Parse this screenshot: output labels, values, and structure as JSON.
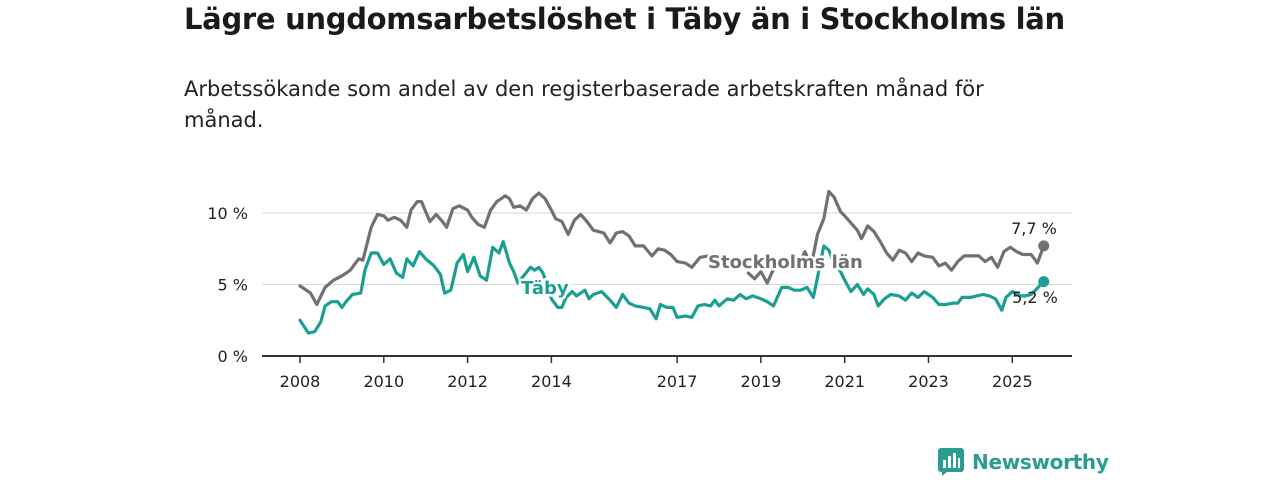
{
  "title": "Lägre ungdomsarbetslöshet i Täby än i Stockholms län",
  "subtitle": "Arbetssökande som andel av den registerbaserade arbetskraften månad för månad.",
  "brand": {
    "name": "Newsworthy",
    "icon": "bar-chart-logo-icon"
  },
  "colors": {
    "stockholm": "#717171",
    "taby": "#1a9f92",
    "grid": "#d9d9d9",
    "axis": "#333333"
  },
  "chart_data": {
    "type": "line",
    "x_ticks": [
      "2008",
      "2010",
      "2012",
      "2014",
      "2017",
      "2019",
      "2021",
      "2023",
      "2025"
    ],
    "y_ticks": [
      "0 %",
      "5 %",
      "10 %"
    ],
    "ylim": [
      0,
      12
    ],
    "series": [
      {
        "name": "Stockholms län",
        "end_label": "7,7 %",
        "points": [
          [
            2008.0,
            4.9
          ],
          [
            2008.25,
            4.4
          ],
          [
            2008.4,
            3.6
          ],
          [
            2008.6,
            4.8
          ],
          [
            2008.8,
            5.3
          ],
          [
            2009.0,
            5.6
          ],
          [
            2009.2,
            6.0
          ],
          [
            2009.4,
            6.8
          ],
          [
            2009.5,
            6.7
          ],
          [
            2009.7,
            9.0
          ],
          [
            2009.85,
            9.9
          ],
          [
            2010.0,
            9.8
          ],
          [
            2010.1,
            9.5
          ],
          [
            2010.25,
            9.7
          ],
          [
            2010.4,
            9.5
          ],
          [
            2010.55,
            9.0
          ],
          [
            2010.65,
            10.2
          ],
          [
            2010.8,
            10.8
          ],
          [
            2010.9,
            10.8
          ],
          [
            2011.0,
            10.1
          ],
          [
            2011.1,
            9.4
          ],
          [
            2011.25,
            9.9
          ],
          [
            2011.4,
            9.4
          ],
          [
            2011.5,
            9.0
          ],
          [
            2011.65,
            10.3
          ],
          [
            2011.8,
            10.5
          ],
          [
            2012.0,
            10.2
          ],
          [
            2012.1,
            9.7
          ],
          [
            2012.25,
            9.2
          ],
          [
            2012.4,
            9.0
          ],
          [
            2012.55,
            10.2
          ],
          [
            2012.7,
            10.8
          ],
          [
            2012.9,
            11.2
          ],
          [
            2013.0,
            11.0
          ],
          [
            2013.1,
            10.4
          ],
          [
            2013.25,
            10.5
          ],
          [
            2013.4,
            10.2
          ],
          [
            2013.55,
            11.0
          ],
          [
            2013.7,
            11.4
          ],
          [
            2013.85,
            11.0
          ],
          [
            2014.0,
            10.2
          ],
          [
            2014.1,
            9.6
          ],
          [
            2014.25,
            9.4
          ],
          [
            2014.4,
            8.5
          ],
          [
            2014.55,
            9.5
          ],
          [
            2014.7,
            9.9
          ],
          [
            2014.85,
            9.4
          ],
          [
            2015.0,
            8.8
          ],
          [
            2015.25,
            8.6
          ],
          [
            2015.4,
            7.9
          ],
          [
            2015.55,
            8.6
          ],
          [
            2015.7,
            8.7
          ],
          [
            2015.85,
            8.4
          ],
          [
            2016.0,
            7.7
          ],
          [
            2016.2,
            7.7
          ],
          [
            2016.4,
            7.0
          ],
          [
            2016.55,
            7.5
          ],
          [
            2016.7,
            7.4
          ],
          [
            2016.85,
            7.1
          ],
          [
            2017.0,
            6.6
          ],
          [
            2017.2,
            6.5
          ],
          [
            2017.35,
            6.2
          ],
          [
            2017.55,
            6.9
          ],
          [
            2017.75,
            7.0
          ],
          [
            2018.7,
            5.8
          ],
          [
            2018.85,
            5.4
          ],
          [
            2019.0,
            5.9
          ],
          [
            2019.15,
            5.1
          ],
          [
            2019.35,
            6.4
          ],
          [
            2019.6,
            6.6
          ],
          [
            2019.8,
            6.8
          ],
          [
            2019.95,
            6.7
          ],
          [
            2020.05,
            7.3
          ],
          [
            2020.2,
            6.3
          ],
          [
            2020.35,
            8.5
          ],
          [
            2020.5,
            9.6
          ],
          [
            2020.62,
            11.5
          ],
          [
            2020.75,
            11.1
          ],
          [
            2020.9,
            10.1
          ],
          [
            2021.0,
            9.8
          ],
          [
            2021.15,
            9.3
          ],
          [
            2021.3,
            8.8
          ],
          [
            2021.4,
            8.2
          ],
          [
            2021.55,
            9.1
          ],
          [
            2021.7,
            8.7
          ],
          [
            2021.85,
            8.0
          ],
          [
            2022.0,
            7.2
          ],
          [
            2022.15,
            6.7
          ],
          [
            2022.3,
            7.4
          ],
          [
            2022.45,
            7.2
          ],
          [
            2022.6,
            6.6
          ],
          [
            2022.75,
            7.2
          ],
          [
            2022.9,
            7.0
          ],
          [
            2023.1,
            6.9
          ],
          [
            2023.25,
            6.3
          ],
          [
            2023.4,
            6.5
          ],
          [
            2023.55,
            6.0
          ],
          [
            2023.7,
            6.6
          ],
          [
            2023.85,
            7.0
          ],
          [
            2024.0,
            7.0
          ],
          [
            2024.2,
            7.0
          ],
          [
            2024.35,
            6.6
          ],
          [
            2024.5,
            6.9
          ],
          [
            2024.65,
            6.2
          ],
          [
            2024.8,
            7.3
          ],
          [
            2024.95,
            7.6
          ],
          [
            2025.1,
            7.3
          ],
          [
            2025.25,
            7.1
          ],
          [
            2025.45,
            7.1
          ],
          [
            2025.6,
            6.5
          ],
          [
            2025.75,
            7.7
          ]
        ]
      },
      {
        "name": "Täby",
        "end_label": "5,2 %",
        "points": [
          [
            2008.0,
            2.5
          ],
          [
            2008.2,
            1.6
          ],
          [
            2008.35,
            1.7
          ],
          [
            2008.5,
            2.4
          ],
          [
            2008.6,
            3.5
          ],
          [
            2008.75,
            3.8
          ],
          [
            2008.9,
            3.8
          ],
          [
            2009.0,
            3.4
          ],
          [
            2009.1,
            3.8
          ],
          [
            2009.25,
            4.3
          ],
          [
            2009.45,
            4.4
          ],
          [
            2009.55,
            6.0
          ],
          [
            2009.7,
            7.2
          ],
          [
            2009.85,
            7.2
          ],
          [
            2010.0,
            6.4
          ],
          [
            2010.15,
            6.8
          ],
          [
            2010.3,
            5.8
          ],
          [
            2010.45,
            5.5
          ],
          [
            2010.55,
            6.8
          ],
          [
            2010.7,
            6.3
          ],
          [
            2010.85,
            7.3
          ],
          [
            2011.0,
            6.8
          ],
          [
            2011.2,
            6.3
          ],
          [
            2011.35,
            5.7
          ],
          [
            2011.45,
            4.4
          ],
          [
            2011.6,
            4.6
          ],
          [
            2011.75,
            6.5
          ],
          [
            2011.9,
            7.1
          ],
          [
            2012.0,
            5.9
          ],
          [
            2012.15,
            6.9
          ],
          [
            2012.3,
            5.6
          ],
          [
            2012.45,
            5.3
          ],
          [
            2012.6,
            7.6
          ],
          [
            2012.75,
            7.2
          ],
          [
            2012.85,
            8.0
          ],
          [
            2013.0,
            6.5
          ],
          [
            2013.1,
            5.9
          ],
          [
            2013.2,
            5.1
          ],
          [
            2013.5,
            6.2
          ],
          [
            2013.6,
            6.0
          ],
          [
            2013.7,
            6.2
          ],
          [
            2013.8,
            5.8
          ],
          [
            2014.0,
            4.0
          ],
          [
            2014.15,
            3.4
          ],
          [
            2014.25,
            3.4
          ],
          [
            2014.35,
            4.1
          ],
          [
            2014.5,
            4.5
          ],
          [
            2014.6,
            4.2
          ],
          [
            2014.8,
            4.6
          ],
          [
            2014.9,
            4.0
          ],
          [
            2015.0,
            4.3
          ],
          [
            2015.2,
            4.5
          ],
          [
            2015.4,
            3.9
          ],
          [
            2015.55,
            3.4
          ],
          [
            2015.7,
            4.3
          ],
          [
            2015.85,
            3.7
          ],
          [
            2016.0,
            3.5
          ],
          [
            2016.2,
            3.4
          ],
          [
            2016.35,
            3.3
          ],
          [
            2016.5,
            2.6
          ],
          [
            2016.6,
            3.6
          ],
          [
            2016.75,
            3.4
          ],
          [
            2016.9,
            3.4
          ],
          [
            2017.0,
            2.7
          ],
          [
            2017.2,
            2.8
          ],
          [
            2017.35,
            2.7
          ],
          [
            2017.5,
            3.5
          ],
          [
            2017.65,
            3.6
          ],
          [
            2017.8,
            3.5
          ],
          [
            2017.9,
            3.9
          ],
          [
            2018.0,
            3.5
          ],
          [
            2018.2,
            4.0
          ],
          [
            2018.35,
            3.9
          ],
          [
            2018.5,
            4.3
          ],
          [
            2018.65,
            4.0
          ],
          [
            2018.8,
            4.2
          ],
          [
            2019.0,
            4.0
          ],
          [
            2019.15,
            3.8
          ],
          [
            2019.3,
            3.5
          ],
          [
            2019.5,
            4.8
          ],
          [
            2019.65,
            4.8
          ],
          [
            2019.8,
            4.6
          ],
          [
            2019.95,
            4.6
          ],
          [
            2020.1,
            4.8
          ],
          [
            2020.25,
            4.1
          ],
          [
            2020.35,
            5.5
          ],
          [
            2020.5,
            7.7
          ],
          [
            2020.62,
            7.4
          ],
          [
            2020.7,
            6.8
          ],
          [
            2020.85,
            6.2
          ],
          [
            2021.0,
            5.3
          ],
          [
            2021.15,
            4.5
          ],
          [
            2021.3,
            5.0
          ],
          [
            2021.45,
            4.3
          ],
          [
            2021.55,
            4.7
          ],
          [
            2021.7,
            4.3
          ],
          [
            2021.8,
            3.5
          ],
          [
            2021.95,
            4.0
          ],
          [
            2022.1,
            4.3
          ],
          [
            2022.3,
            4.2
          ],
          [
            2022.45,
            3.9
          ],
          [
            2022.6,
            4.4
          ],
          [
            2022.75,
            4.1
          ],
          [
            2022.9,
            4.5
          ],
          [
            2023.1,
            4.1
          ],
          [
            2023.25,
            3.6
          ],
          [
            2023.4,
            3.6
          ],
          [
            2023.6,
            3.7
          ],
          [
            2023.7,
            3.7
          ],
          [
            2023.8,
            4.1
          ],
          [
            2024.0,
            4.1
          ],
          [
            2024.15,
            4.2
          ],
          [
            2024.3,
            4.3
          ],
          [
            2024.45,
            4.2
          ],
          [
            2024.6,
            4.0
          ],
          [
            2024.75,
            3.2
          ],
          [
            2024.85,
            4.1
          ],
          [
            2025.0,
            4.5
          ],
          [
            2025.2,
            4.2
          ],
          [
            2025.3,
            4.2
          ],
          [
            2025.45,
            4.3
          ],
          [
            2025.75,
            5.2
          ]
        ]
      }
    ]
  }
}
